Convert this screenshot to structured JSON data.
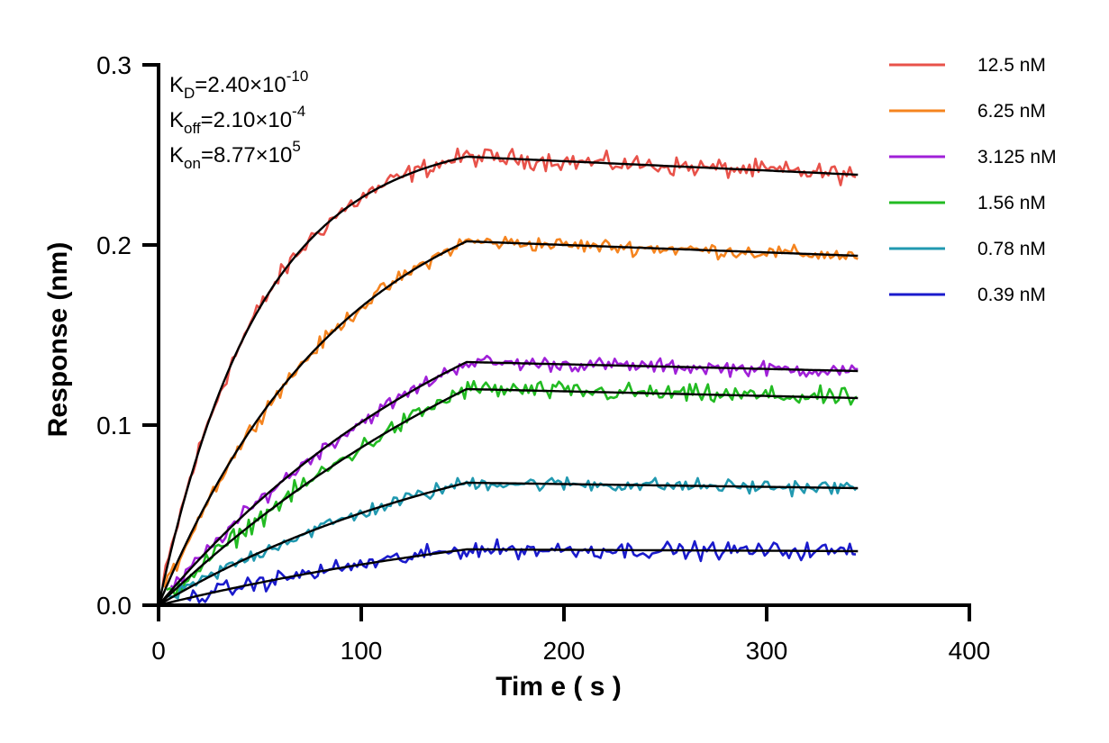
{
  "chart_data": {
    "type": "line",
    "title": "",
    "xlabel": "Tim e ( s )",
    "ylabel": "Response (nm)",
    "xlim": [
      0,
      400
    ],
    "ylim": [
      0,
      0.3
    ],
    "x_ticks": [
      "0",
      "100",
      "200",
      "300",
      "400"
    ],
    "y_ticks": [
      "0.0",
      "0.1",
      "0.2",
      "0.3"
    ],
    "grid": false,
    "legend_position": "top-right",
    "association_end_s": 152,
    "dissociation_end_s": 345,
    "annotations": [
      {
        "main": "K",
        "sub": "D",
        "rest": "=2.40×10",
        "sup": "-10"
      },
      {
        "main": "K",
        "sub": "off",
        "rest": "=2.10×10",
        "sup": "-4"
      },
      {
        "main": "K",
        "sub": "on",
        "rest": "=8.77×10",
        "sup": "5"
      }
    ],
    "series": [
      {
        "name": "12.5 nM",
        "color": "#e8524a",
        "plateau": 0.249,
        "end": 0.239,
        "tau": 50,
        "noise": 0.0045,
        "onset": 2
      },
      {
        "name": "6.25 nM",
        "color": "#f5841f",
        "plateau": 0.202,
        "end": 0.194,
        "tau": 92,
        "noise": 0.0035,
        "onset": 3
      },
      {
        "name": "3.125 nM",
        "color": "#a020d8",
        "plateau": 0.135,
        "end": 0.13,
        "tau": 170,
        "noise": 0.0035,
        "onset": 6
      },
      {
        "name": "1.56 nM",
        "color": "#22bb22",
        "plateau": 0.12,
        "end": 0.115,
        "tau": 230,
        "noise": 0.0045,
        "onset": 4
      },
      {
        "name": "0.78 nM",
        "color": "#2199b0",
        "plateau": 0.068,
        "end": 0.065,
        "tau": 170,
        "noise": 0.0035,
        "onset": 5
      },
      {
        "name": "0.39 nM",
        "color": "#1a1acc",
        "plateau": 0.031,
        "end": 0.03,
        "tau": 230,
        "noise": 0.004,
        "onset": 14
      }
    ]
  }
}
